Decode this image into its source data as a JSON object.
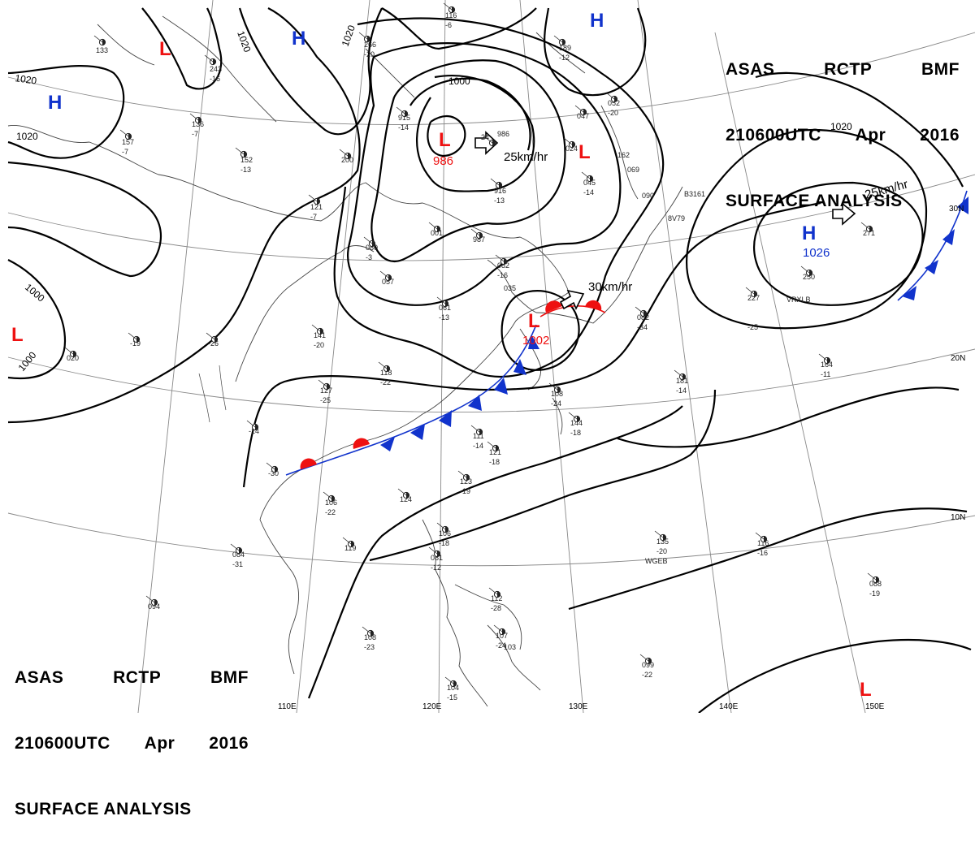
{
  "header": {
    "agency": "ASAS",
    "station": "RCTP",
    "office": "BMF",
    "valid_time": "210600UTC",
    "month": "Apr",
    "year": "2016",
    "title": "SURFACE ANALYSIS"
  },
  "colors": {
    "high": "#1133cc",
    "low": "#ee1111",
    "warm_front": "#ee1111",
    "cold_front": "#1133cc",
    "isobar": "#000000",
    "coast": "#444444",
    "grid": "#888888"
  },
  "pressure_systems": [
    {
      "type": "H",
      "label": "H",
      "value": ""
    },
    {
      "type": "H",
      "label": "H",
      "value": ""
    },
    {
      "type": "H",
      "label": "H",
      "value": ""
    },
    {
      "type": "L",
      "label": "L",
      "value": ""
    },
    {
      "type": "L",
      "label": "L",
      "value": "986"
    },
    {
      "type": "L",
      "label": "L",
      "value": ""
    },
    {
      "type": "L",
      "label": "L",
      "value": ""
    },
    {
      "type": "L",
      "label": "L",
      "value": "1002"
    },
    {
      "type": "H",
      "label": "H",
      "value": "1026"
    },
    {
      "type": "L",
      "label": "L",
      "value": ""
    }
  ],
  "isobar_labels": [
    "1020",
    "1020",
    "1020",
    "1020",
    "1000",
    "1000",
    "1000",
    "1020"
  ],
  "motion_vectors": [
    {
      "label": "25km/hr"
    },
    {
      "label": "30km/hr"
    },
    {
      "label": "25km/hr"
    }
  ],
  "latitude_labels": [
    "30N",
    "20N",
    "10N"
  ],
  "longitude_labels": [
    "110E",
    "120E",
    "130E",
    "140E",
    "150E"
  ],
  "station_plots": [
    "133",
    "243",
    "-16",
    "266",
    "-20",
    "116",
    "-6",
    "189",
    "-12",
    "136",
    "-7",
    "157",
    "-7",
    "152",
    "-13",
    "200",
    "121",
    "-7",
    "915",
    "-14",
    "24",
    "986",
    "024",
    "047",
    "052",
    "-20",
    "916",
    "-13",
    "045",
    "-14",
    "069",
    "090",
    "001",
    "987",
    "080",
    "-3",
    "057",
    "082",
    "-16",
    "035",
    "061",
    "-13",
    "141",
    "-20",
    "118",
    "-22",
    "127",
    "-25",
    "108",
    "-24",
    "144",
    "-18",
    "111",
    "-14",
    "121",
    "-18",
    "123",
    "-19",
    "124",
    "106",
    "-22",
    "119",
    "084",
    "-31",
    "094",
    "108",
    "-23",
    "106",
    "-18",
    "081",
    "-12",
    "112",
    "-28",
    "107",
    "-24",
    "103",
    "104",
    "-15",
    "227",
    "-25",
    "250",
    "271",
    "181",
    "-14",
    "164",
    "-11",
    "082",
    "-34",
    "135",
    "-20",
    "116",
    "-16",
    "088",
    "-19",
    "099",
    "-22",
    "020",
    "-19",
    "-26",
    "-14",
    "-30",
    "162",
    "WGEB",
    "VRXLB",
    "B3161",
    "8V79"
  ]
}
